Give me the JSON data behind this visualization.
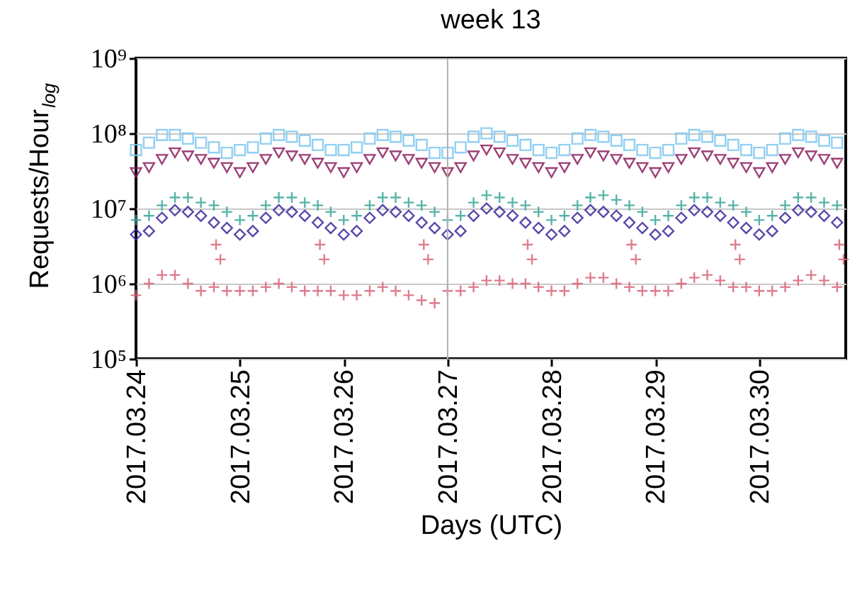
{
  "chart_data": {
    "type": "scatter",
    "title": "week 13",
    "xlabel": "Days (UTC)",
    "ylabel": "Requests/Hour$_{log}$",
    "log": "y",
    "grid": "y",
    "xlim": [
      "2017-03-24T00:00",
      "2017-03-30T20:00"
    ],
    "xticks": [
      {
        "value": "2017-03-24",
        "label": "2017.03.24"
      },
      {
        "value": "2017-03-25",
        "label": "2017.03.25"
      },
      {
        "value": "2017-03-26",
        "label": "2017.03.26"
      },
      {
        "value": "2017-03-27",
        "label": "2017.03.27"
      },
      {
        "value": "2017-03-28",
        "label": "2017.03.28"
      },
      {
        "value": "2017-03-29",
        "label": "2017.03.29"
      },
      {
        "value": "2017-03-30",
        "label": "2017.03.30"
      }
    ],
    "ylim": [
      100000,
      1000000000
    ],
    "yticks": [
      {
        "value": 100000,
        "label": "10⁵"
      },
      {
        "value": 1000000,
        "label": "10⁶"
      },
      {
        "value": 10000000,
        "label": "10⁷"
      },
      {
        "value": 100000000,
        "label": "10⁸"
      },
      {
        "value": 1000000000,
        "label": "10⁹"
      }
    ],
    "ref_lines": [
      {
        "axis": "x",
        "value": "2017-03-27",
        "color": "#b0b0b0"
      }
    ],
    "x": [
      "2017-03-24T00:00",
      "2017-03-24T03:00",
      "2017-03-24T06:00",
      "2017-03-24T09:00",
      "2017-03-24T12:00",
      "2017-03-24T15:00",
      "2017-03-24T18:00",
      "2017-03-24T21:00",
      "2017-03-25T00:00",
      "2017-03-25T03:00",
      "2017-03-25T06:00",
      "2017-03-25T09:00",
      "2017-03-25T12:00",
      "2017-03-25T15:00",
      "2017-03-25T18:00",
      "2017-03-25T21:00",
      "2017-03-26T00:00",
      "2017-03-26T03:00",
      "2017-03-26T06:00",
      "2017-03-26T09:00",
      "2017-03-26T12:00",
      "2017-03-26T15:00",
      "2017-03-26T18:00",
      "2017-03-26T21:00",
      "2017-03-27T00:00",
      "2017-03-27T03:00",
      "2017-03-27T06:00",
      "2017-03-27T09:00",
      "2017-03-27T12:00",
      "2017-03-27T15:00",
      "2017-03-27T18:00",
      "2017-03-27T21:00",
      "2017-03-28T00:00",
      "2017-03-28T03:00",
      "2017-03-28T06:00",
      "2017-03-28T09:00",
      "2017-03-28T12:00",
      "2017-03-28T15:00",
      "2017-03-28T18:00",
      "2017-03-28T21:00",
      "2017-03-29T00:00",
      "2017-03-29T03:00",
      "2017-03-29T06:00",
      "2017-03-29T09:00",
      "2017-03-29T12:00",
      "2017-03-29T15:00",
      "2017-03-29T18:00",
      "2017-03-29T21:00",
      "2017-03-30T00:00",
      "2017-03-30T03:00",
      "2017-03-30T06:00",
      "2017-03-30T09:00",
      "2017-03-30T12:00",
      "2017-03-30T15:00",
      "2017-03-30T18:00"
    ],
    "series": [
      {
        "color": "#7fc8ef",
        "marker": "square",
        "values": [
          60000000.0,
          75000000.0,
          95000000.0,
          95000000.0,
          85000000.0,
          75000000.0,
          65000000.0,
          55000000.0,
          60000000.0,
          65000000.0,
          85000000.0,
          95000000.0,
          90000000.0,
          80000000.0,
          70000000.0,
          60000000.0,
          60000000.0,
          65000000.0,
          85000000.0,
          95000000.0,
          90000000.0,
          80000000.0,
          70000000.0,
          55000000.0,
          55000000.0,
          65000000.0,
          90000000.0,
          100000000.0,
          90000000.0,
          80000000.0,
          70000000.0,
          60000000.0,
          55000000.0,
          60000000.0,
          85000000.0,
          95000000.0,
          90000000.0,
          80000000.0,
          70000000.0,
          60000000.0,
          55000000.0,
          60000000.0,
          85000000.0,
          95000000.0,
          90000000.0,
          80000000.0,
          70000000.0,
          60000000.0,
          55000000.0,
          60000000.0,
          85000000.0,
          95000000.0,
          90000000.0,
          80000000.0,
          75000000.0
        ]
      },
      {
        "color": "#8b1f5e",
        "marker": "triangle",
        "values": [
          30000000.0,
          35000000.0,
          45000000.0,
          55000000.0,
          50000000.0,
          45000000.0,
          40000000.0,
          35000000.0,
          30000000.0,
          35000000.0,
          45000000.0,
          55000000.0,
          50000000.0,
          45000000.0,
          40000000.0,
          35000000.0,
          30000000.0,
          35000000.0,
          45000000.0,
          55000000.0,
          50000000.0,
          45000000.0,
          40000000.0,
          35000000.0,
          30000000.0,
          35000000.0,
          50000000.0,
          60000000.0,
          55000000.0,
          45000000.0,
          40000000.0,
          35000000.0,
          30000000.0,
          35000000.0,
          45000000.0,
          55000000.0,
          50000000.0,
          45000000.0,
          40000000.0,
          35000000.0,
          30000000.0,
          35000000.0,
          45000000.0,
          55000000.0,
          50000000.0,
          45000000.0,
          40000000.0,
          35000000.0,
          30000000.0,
          35000000.0,
          45000000.0,
          55000000.0,
          50000000.0,
          45000000.0,
          40000000.0
        ]
      },
      {
        "color": "#3aa89a",
        "marker": "cross",
        "values": [
          7000000.0,
          8000000.0,
          11000000.0,
          14000000.0,
          14000000.0,
          12000000.0,
          11000000.0,
          9000000.0,
          7000000.0,
          8000000.0,
          11000000.0,
          14000000.0,
          14000000.0,
          12000000.0,
          11000000.0,
          9000000.0,
          7000000.0,
          8000000.0,
          11000000.0,
          14000000.0,
          14000000.0,
          12000000.0,
          11000000.0,
          9000000.0,
          7000000.0,
          8000000.0,
          12000000.0,
          15000000.0,
          14000000.0,
          12000000.0,
          11000000.0,
          9000000.0,
          7000000.0,
          8000000.0,
          11000000.0,
          14000000.0,
          15000000.0,
          13000000.0,
          11000000.0,
          9000000.0,
          7000000.0,
          8000000.0,
          11000000.0,
          14000000.0,
          14000000.0,
          12000000.0,
          11000000.0,
          9000000.0,
          7000000.0,
          8000000.0,
          11000000.0,
          14000000.0,
          14000000.0,
          12000000.0,
          11000000.0
        ]
      },
      {
        "color": "#3a2a9c",
        "marker": "diamond",
        "values": [
          4500000.0,
          5000000.0,
          7500000.0,
          9500000.0,
          9000000.0,
          8000000.0,
          6500000.0,
          5500000.0,
          4500000.0,
          5000000.0,
          7500000.0,
          9500000.0,
          9000000.0,
          8000000.0,
          6500000.0,
          5500000.0,
          4500000.0,
          5000000.0,
          7500000.0,
          9500000.0,
          9000000.0,
          8000000.0,
          6500000.0,
          5500000.0,
          4500000.0,
          5000000.0,
          8000000.0,
          10000000.0,
          9000000.0,
          8000000.0,
          6500000.0,
          5500000.0,
          4500000.0,
          5000000.0,
          7500000.0,
          9500000.0,
          9000000.0,
          8000000.0,
          6500000.0,
          5500000.0,
          4500000.0,
          5000000.0,
          7500000.0,
          9500000.0,
          9000000.0,
          8000000.0,
          6500000.0,
          5500000.0,
          4500000.0,
          5000000.0,
          7500000.0,
          9500000.0,
          9000000.0,
          8000000.0,
          6500000.0
        ]
      },
      {
        "color": "#d9667a",
        "marker": "cross",
        "x": [
          "2017-03-24T00:00",
          "2017-03-24T03:00",
          "2017-03-24T06:00",
          "2017-03-24T09:00",
          "2017-03-24T12:00",
          "2017-03-24T15:00",
          "2017-03-24T18:00",
          "2017-03-24T21:00",
          "2017-03-25T00:00",
          "2017-03-25T03:00",
          "2017-03-25T06:00",
          "2017-03-25T09:00",
          "2017-03-25T12:00",
          "2017-03-25T15:00",
          "2017-03-25T18:00",
          "2017-03-25T21:00",
          "2017-03-26T00:00",
          "2017-03-26T03:00",
          "2017-03-26T06:00",
          "2017-03-26T09:00",
          "2017-03-26T12:00",
          "2017-03-26T15:00",
          "2017-03-26T18:00",
          "2017-03-26T21:00",
          "2017-03-27T00:00",
          "2017-03-27T03:00",
          "2017-03-27T06:00",
          "2017-03-27T09:00",
          "2017-03-27T12:00",
          "2017-03-27T15:00",
          "2017-03-27T18:00",
          "2017-03-27T21:00",
          "2017-03-28T00:00",
          "2017-03-28T03:00",
          "2017-03-28T06:00",
          "2017-03-28T09:00",
          "2017-03-28T12:00",
          "2017-03-28T15:00",
          "2017-03-28T18:00",
          "2017-03-28T21:00",
          "2017-03-29T00:00",
          "2017-03-29T03:00",
          "2017-03-29T06:00",
          "2017-03-29T09:00",
          "2017-03-29T12:00",
          "2017-03-29T15:00",
          "2017-03-29T18:00",
          "2017-03-29T21:00",
          "2017-03-30T00:00",
          "2017-03-30T03:00",
          "2017-03-30T06:00",
          "2017-03-30T09:00",
          "2017-03-30T12:00",
          "2017-03-30T15:00",
          "2017-03-30T18:00",
          "2017-03-24T18:30",
          "2017-03-24T19:30",
          "2017-03-25T18:30",
          "2017-03-25T19:30",
          "2017-03-26T18:30",
          "2017-03-26T19:30",
          "2017-03-27T18:30",
          "2017-03-27T19:30",
          "2017-03-28T18:30",
          "2017-03-28T19:30",
          "2017-03-29T18:30",
          "2017-03-29T19:30",
          "2017-03-30T18:30",
          "2017-03-30T19:30"
        ],
        "values": [
          700000.0,
          1000000.0,
          1300000.0,
          1300000.0,
          1000000.0,
          800000.0,
          900000.0,
          800000.0,
          800000.0,
          800000.0,
          900000.0,
          1000000.0,
          900000.0,
          800000.0,
          800000.0,
          800000.0,
          700000.0,
          700000.0,
          800000.0,
          900000.0,
          800000.0,
          700000.0,
          600000.0,
          550000.0,
          800000.0,
          800000.0,
          900000.0,
          1100000.0,
          1100000.0,
          1000000.0,
          1000000.0,
          900000.0,
          800000.0,
          800000.0,
          1000000.0,
          1200000.0,
          1200000.0,
          1000000.0,
          900000.0,
          800000.0,
          800000.0,
          800000.0,
          1000000.0,
          1200000.0,
          1300000.0,
          1100000.0,
          900000.0,
          900000.0,
          800000.0,
          800000.0,
          900000.0,
          1100000.0,
          1300000.0,
          1100000.0,
          900000.0,
          3300000.0,
          2100000.0,
          3300000.0,
          2100000.0,
          3300000.0,
          2100000.0,
          3300000.0,
          2100000.0,
          3300000.0,
          2100000.0,
          3300000.0,
          2100000.0,
          3300000.0,
          2100000.0
        ]
      }
    ]
  }
}
